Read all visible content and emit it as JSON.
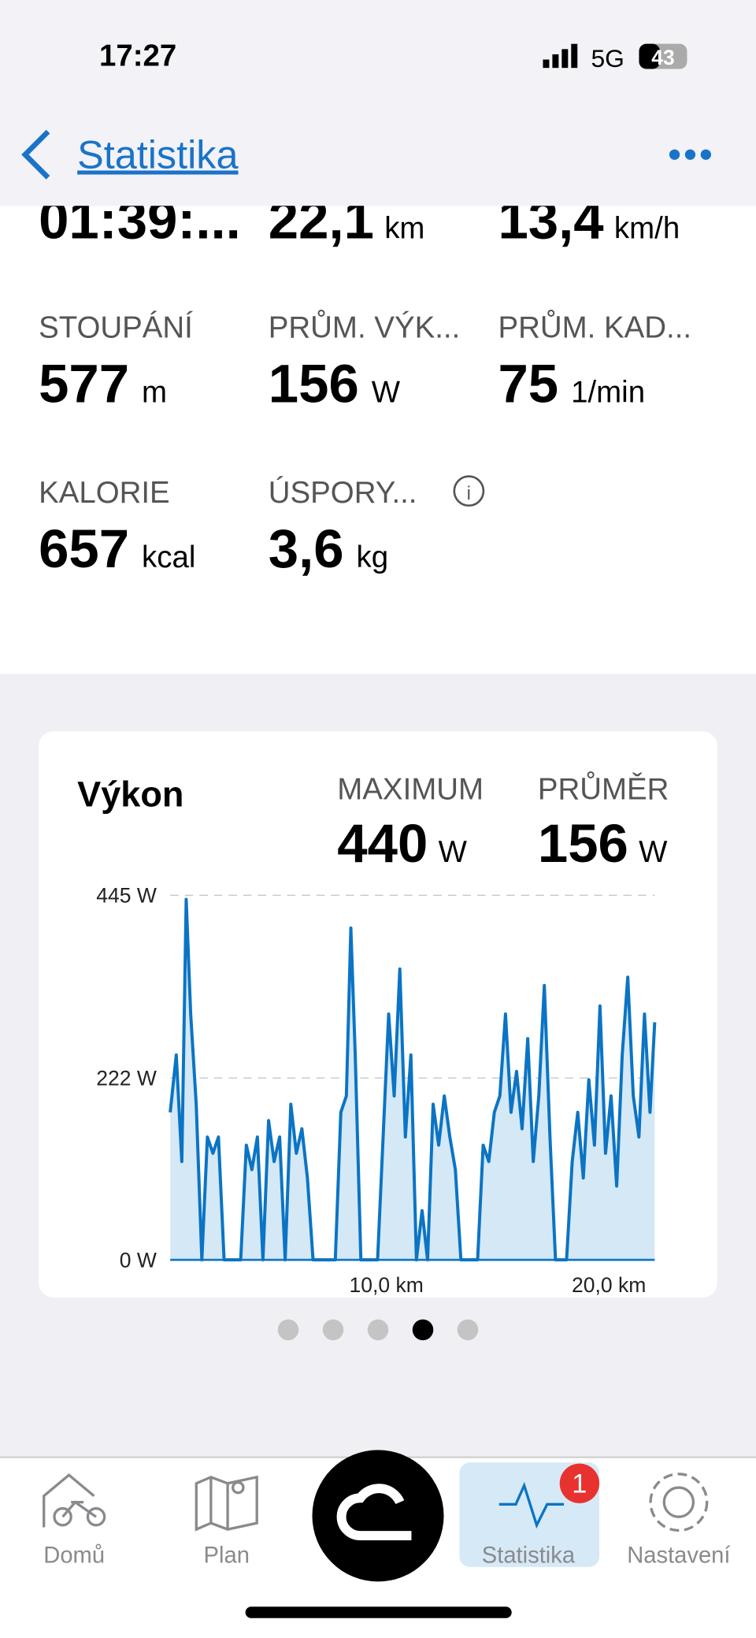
{
  "status_bar": {
    "time": "17:27",
    "network": "5G",
    "battery": "43"
  },
  "header": {
    "title": "Statistika"
  },
  "top_row": [
    {
      "value": "01:39:..."
    },
    {
      "value": "22,1",
      "unit": "km"
    },
    {
      "value": "13,4",
      "unit": "km/h"
    }
  ],
  "stats": [
    {
      "label": "STOUPÁNÍ",
      "value": "577",
      "unit": "m"
    },
    {
      "label": "PRŮM. VÝK...",
      "value": "156",
      "unit": "W"
    },
    {
      "label": "PRŮM. KAD...",
      "value": "75",
      "unit": "1/min"
    },
    {
      "label": "KALORIE",
      "value": "657",
      "unit": "kcal"
    },
    {
      "label": "ÚSPORY...",
      "value": "3,6",
      "unit": "kg"
    }
  ],
  "card": {
    "title": "Výkon",
    "summary": [
      {
        "label": "MAXIMUM",
        "value": "440",
        "unit": "W"
      },
      {
        "label": "PRŮMĚR",
        "value": "156",
        "unit": "W"
      }
    ]
  },
  "chart_data": {
    "type": "area",
    "color": "#0b74c4",
    "fill": "#d5e8f6",
    "x": [
      0.28,
      0.55,
      0.8,
      1.0,
      1.2,
      1.45,
      1.7,
      1.95,
      2.2,
      2.45,
      2.7,
      2.95,
      3.2,
      3.45,
      3.7,
      3.95,
      4.2,
      4.45,
      4.7,
      4.95,
      5.2,
      5.45,
      5.7,
      5.95,
      6.2,
      6.45,
      6.7,
      6.95,
      7.2,
      7.45,
      7.7,
      7.95,
      8.2,
      8.4,
      8.6,
      8.85,
      9.1,
      9.35,
      9.6,
      9.85,
      10.1,
      10.35,
      10.6,
      10.85,
      11.1,
      11.35,
      11.6,
      11.85,
      12.1,
      12.35,
      12.6,
      12.85,
      13.1,
      13.35,
      13.6,
      13.85,
      14.1,
      14.35,
      14.6,
      14.85,
      15.1,
      15.35,
      15.6,
      15.85,
      16.1,
      16.35,
      16.6,
      16.85,
      17.1,
      17.35,
      17.6,
      17.85,
      18.1,
      18.35,
      18.6,
      18.85,
      19.1,
      19.35,
      19.6,
      19.85,
      20.1,
      20.35,
      20.6,
      20.85,
      21.1,
      21.35,
      21.6,
      21.85,
      22.06
    ],
    "values": [
      180,
      250,
      120,
      440,
      300,
      190,
      0,
      150,
      130,
      150,
      0,
      0,
      0,
      0,
      140,
      110,
      150,
      0,
      170,
      120,
      150,
      0,
      190,
      130,
      160,
      100,
      0,
      0,
      0,
      0,
      0,
      180,
      200,
      405,
      250,
      0,
      0,
      0,
      0,
      150,
      300,
      200,
      355,
      150,
      250,
      0,
      60,
      0,
      190,
      140,
      200,
      150,
      110,
      0,
      0,
      0,
      0,
      140,
      120,
      180,
      200,
      300,
      180,
      230,
      160,
      270,
      120,
      200,
      335,
      150,
      0,
      0,
      0,
      120,
      180,
      100,
      220,
      140,
      310,
      130,
      200,
      90,
      250,
      345,
      200,
      150,
      300,
      180,
      290
    ],
    "xlim": [
      0.28,
      22.06
    ],
    "xticks": [
      {
        "value": 10,
        "label": "10,0 km"
      },
      {
        "value": 20,
        "label": "20,0 km"
      }
    ],
    "ylim": [
      0,
      445
    ],
    "yticks": [
      {
        "value": 0,
        "label": "0 W"
      },
      {
        "value": 222,
        "label": "222 W"
      },
      {
        "value": 445,
        "label": "445 W"
      }
    ],
    "grid": true
  },
  "tabs": [
    {
      "label": "Domů"
    },
    {
      "label": "Plan"
    },
    {
      "label": "Statistika",
      "badge": "1"
    },
    {
      "label": "Nastavení"
    }
  ]
}
